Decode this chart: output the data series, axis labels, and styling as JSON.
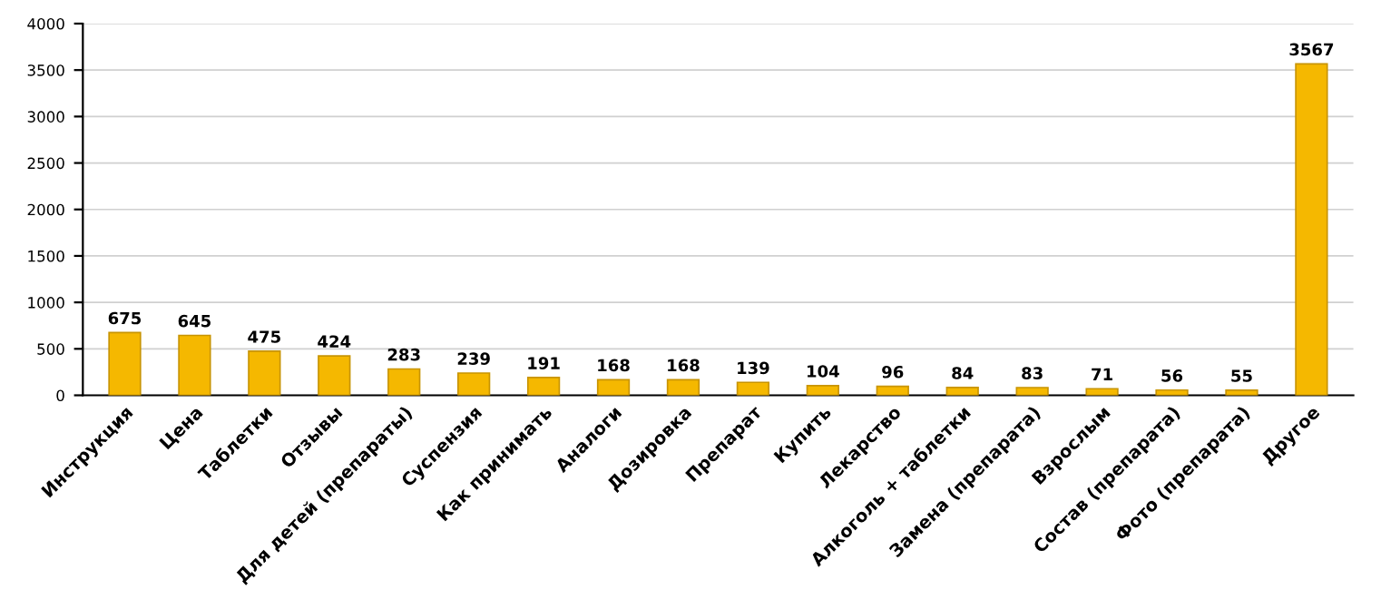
{
  "chart_data": {
    "type": "bar",
    "categories": [
      "Инструкция",
      "Цена",
      "Таблетки",
      "Отзывы",
      "Для детей (препараты)",
      "Суспензия",
      "Как принимать",
      "Аналоги",
      "Дозировка",
      "Препарат",
      "Купить",
      "Лекарство",
      "Алкоголь + таблетки",
      "Замена (препарата)",
      "Взрослым",
      "Состав (препарата)",
      "Фото (препарата)",
      "Другое"
    ],
    "values": [
      675,
      645,
      475,
      424,
      283,
      239,
      191,
      168,
      168,
      139,
      104,
      96,
      84,
      83,
      71,
      56,
      55,
      3567
    ],
    "color": "#f5b800",
    "ylim": [
      0,
      4000
    ],
    "yticks": [
      0,
      500,
      1000,
      1500,
      2000,
      2500,
      3000,
      3500,
      4000
    ],
    "grid": "y",
    "data_labels": true
  }
}
